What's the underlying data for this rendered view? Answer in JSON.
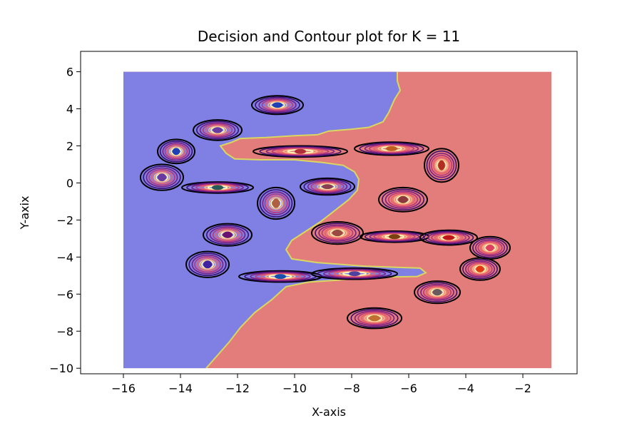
{
  "chart_data": {
    "type": "contour",
    "title": "Decision and Contour plot for K = 11",
    "xlabel": "X-axis",
    "ylabel": "Y-axix",
    "xlim": [
      -17.5,
      -0.1
    ],
    "ylim": [
      -10.3,
      7.1
    ],
    "grid": false,
    "region_extent": {
      "x": [
        -16,
        -1
      ],
      "y": [
        -10,
        6
      ]
    },
    "x_ticks": [
      -16,
      -14,
      -12,
      -10,
      -8,
      -6,
      -4,
      -2
    ],
    "y_ticks": [
      -10,
      -8,
      -6,
      -4,
      -2,
      0,
      2,
      4,
      6
    ],
    "x_tick_labels": [
      "−16",
      "−14",
      "−12",
      "−10",
      "−8",
      "−6",
      "−4",
      "−2"
    ],
    "y_tick_labels": [
      "−10",
      "−8",
      "−6",
      "−4",
      "−2",
      "0",
      "2",
      "4",
      "6"
    ],
    "regions": [
      {
        "class": "blue",
        "color": "#7f7fe4"
      },
      {
        "class": "red",
        "color": "#e37d7b"
      }
    ],
    "decision_boundary": [
      [
        -6.4,
        6.0
      ],
      [
        -6.4,
        5.5
      ],
      [
        -6.3,
        5.0
      ],
      [
        -6.5,
        4.5
      ],
      [
        -6.7,
        3.8
      ],
      [
        -6.9,
        3.3
      ],
      [
        -7.4,
        3.0
      ],
      [
        -8.0,
        2.9
      ],
      [
        -8.8,
        2.8
      ],
      [
        -9.2,
        2.6
      ],
      [
        -10.0,
        2.55
      ],
      [
        -11.0,
        2.45
      ],
      [
        -11.9,
        2.4
      ],
      [
        -12.2,
        2.2
      ],
      [
        -12.6,
        2.0
      ],
      [
        -12.4,
        1.6
      ],
      [
        -12.1,
        1.3
      ],
      [
        -11.2,
        1.25
      ],
      [
        -10.0,
        1.25
      ],
      [
        -9.0,
        1.1
      ],
      [
        -8.3,
        0.95
      ],
      [
        -7.9,
        0.6
      ],
      [
        -7.75,
        0.2
      ],
      [
        -7.8,
        -0.4
      ],
      [
        -8.1,
        -0.9
      ],
      [
        -8.6,
        -1.5
      ],
      [
        -9.1,
        -2.1
      ],
      [
        -9.7,
        -2.7
      ],
      [
        -10.1,
        -3.1
      ],
      [
        -10.3,
        -3.6
      ],
      [
        -10.1,
        -4.1
      ],
      [
        -9.2,
        -4.3
      ],
      [
        -7.5,
        -4.5
      ],
      [
        -5.6,
        -4.6
      ],
      [
        -5.4,
        -4.85
      ],
      [
        -5.7,
        -5.05
      ],
      [
        -7.5,
        -5.1
      ],
      [
        -8.5,
        -5.25
      ],
      [
        -9.5,
        -5.35
      ],
      [
        -10.3,
        -5.6
      ],
      [
        -10.8,
        -6.3
      ],
      [
        -11.4,
        -7.0
      ],
      [
        -11.9,
        -7.8
      ],
      [
        -12.3,
        -8.6
      ],
      [
        -12.7,
        -9.3
      ],
      [
        -13.1,
        -10.0
      ]
    ],
    "clusters": [
      {
        "center": [
          -10.6,
          4.2
        ],
        "rx": 0.9,
        "ry": 0.5,
        "color": "#1f3fb5"
      },
      {
        "center": [
          -12.7,
          2.85
        ],
        "rx": 0.85,
        "ry": 0.55,
        "color": "#6a3aa0"
      },
      {
        "center": [
          -14.15,
          1.7
        ],
        "rx": 0.65,
        "ry": 0.65,
        "color": "#1f3fb5"
      },
      {
        "center": [
          -14.65,
          0.3
        ],
        "rx": 0.75,
        "ry": 0.7,
        "color": "#6a3aa0"
      },
      {
        "center": [
          -12.7,
          -0.25
        ],
        "rx": 1.25,
        "ry": 0.3,
        "color": "#2a5a55"
      },
      {
        "center": [
          -9.8,
          1.7
        ],
        "rx": 1.65,
        "ry": 0.3,
        "color": "#b0303a"
      },
      {
        "center": [
          -6.6,
          1.85
        ],
        "rx": 1.3,
        "ry": 0.35,
        "color": "#c06020"
      },
      {
        "center": [
          -4.85,
          0.95
        ],
        "rx": 0.6,
        "ry": 0.9,
        "color": "#b03020"
      },
      {
        "center": [
          -8.85,
          -0.2
        ],
        "rx": 0.95,
        "ry": 0.45,
        "color": "#8a4050"
      },
      {
        "center": [
          -10.65,
          -1.1
        ],
        "rx": 0.65,
        "ry": 0.85,
        "color": "#b06040"
      },
      {
        "center": [
          -6.2,
          -0.9
        ],
        "rx": 0.85,
        "ry": 0.65,
        "color": "#8a3a3a"
      },
      {
        "center": [
          -12.35,
          -2.8
        ],
        "rx": 0.85,
        "ry": 0.6,
        "color": "#6a1070"
      },
      {
        "center": [
          -8.5,
          -2.7
        ],
        "rx": 0.9,
        "ry": 0.6,
        "color": "#9a4a40"
      },
      {
        "center": [
          -6.5,
          -2.9
        ],
        "rx": 1.2,
        "ry": 0.3,
        "color": "#7a4010"
      },
      {
        "center": [
          -4.6,
          -2.95
        ],
        "rx": 1.0,
        "ry": 0.4,
        "color": "#c01818"
      },
      {
        "center": [
          -3.15,
          -3.5
        ],
        "rx": 0.7,
        "ry": 0.6,
        "color": "#e04060"
      },
      {
        "center": [
          -13.05,
          -4.4
        ],
        "rx": 0.75,
        "ry": 0.7,
        "color": "#4020a0"
      },
      {
        "center": [
          -10.5,
          -5.05
        ],
        "rx": 1.45,
        "ry": 0.3,
        "color": "#1a50b0"
      },
      {
        "center": [
          -7.9,
          -4.9
        ],
        "rx": 1.5,
        "ry": 0.3,
        "color": "#5040a0"
      },
      {
        "center": [
          -3.5,
          -4.65
        ],
        "rx": 0.7,
        "ry": 0.6,
        "color": "#e03a10"
      },
      {
        "center": [
          -5.0,
          -5.9
        ],
        "rx": 0.8,
        "ry": 0.6,
        "color": "#6a5a60"
      },
      {
        "center": [
          -7.2,
          -7.3
        ],
        "rx": 0.95,
        "ry": 0.55,
        "color": "#c07030"
      }
    ]
  }
}
